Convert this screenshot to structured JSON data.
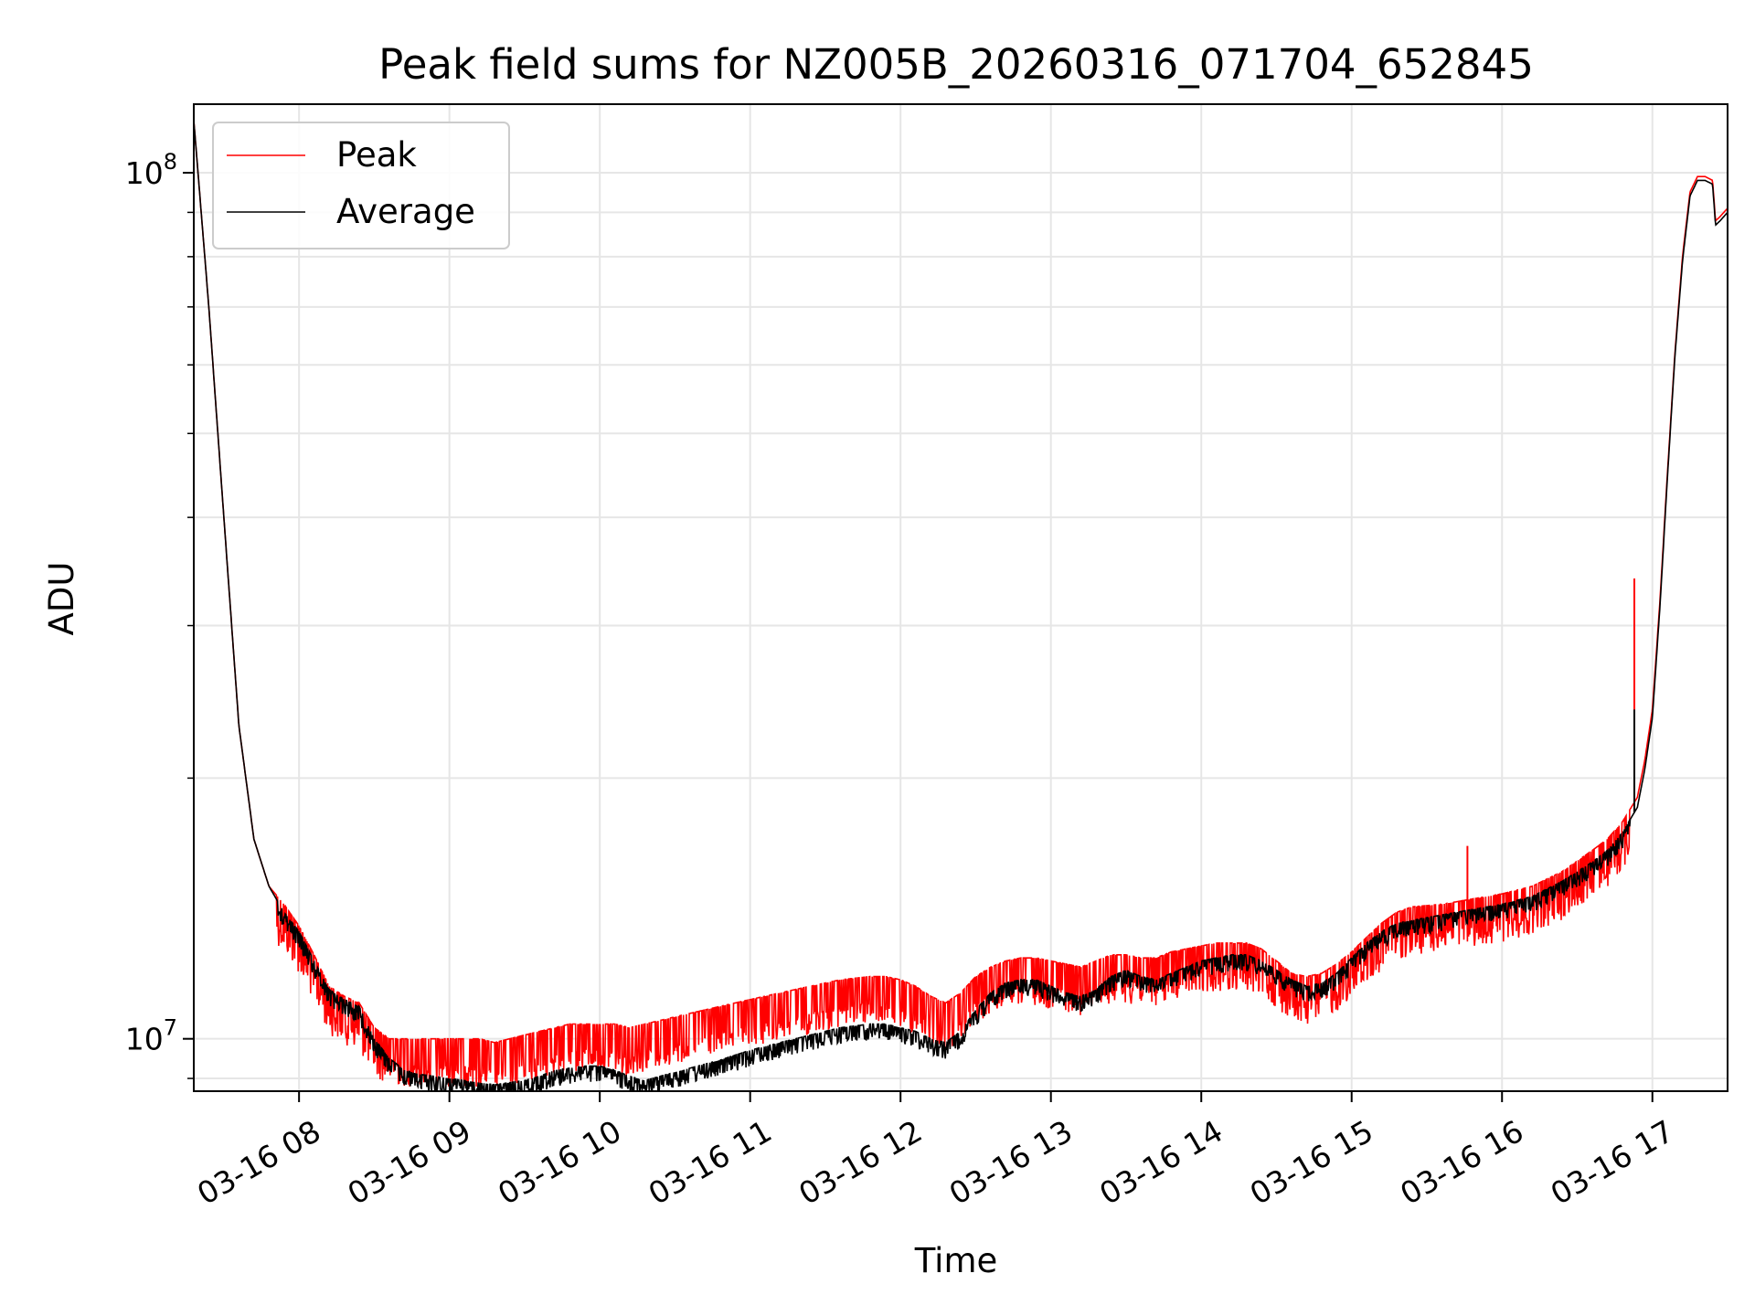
{
  "chart_data": {
    "type": "line",
    "title": "Peak field sums for NZ005B_20260316_071704_652845",
    "xlabel": "Time",
    "ylabel": "ADU",
    "yscale": "log",
    "xlim_hours": [
      7.3,
      17.5
    ],
    "ylim": [
      8700000,
      120000000
    ],
    "grid": true,
    "legend_position": "upper-left",
    "x_tick_labels": [
      "03-16 08",
      "03-16 09",
      "03-16 10",
      "03-16 11",
      "03-16 12",
      "03-16 13",
      "03-16 14",
      "03-16 15",
      "03-16 16",
      "03-16 17"
    ],
    "x_tick_hours": [
      8,
      9,
      10,
      11,
      12,
      13,
      14,
      15,
      16,
      17
    ],
    "y_tick_labels": [
      {
        "base": "10",
        "exp": "7",
        "value": 10000000
      },
      {
        "base": "10",
        "exp": "8",
        "value": 100000000
      }
    ],
    "x_hours": [
      7.3,
      7.4,
      7.5,
      7.6,
      7.7,
      7.8,
      7.9,
      8.0,
      8.1,
      8.2,
      8.3,
      8.4,
      8.5,
      8.6,
      8.7,
      8.8,
      9.0,
      9.2,
      9.3,
      9.4,
      9.5,
      9.6,
      9.7,
      9.8,
      9.9,
      10.0,
      10.1,
      10.2,
      10.3,
      10.4,
      10.5,
      10.6,
      10.8,
      11.0,
      11.2,
      11.4,
      11.6,
      11.8,
      11.9,
      12.0,
      12.1,
      12.2,
      12.3,
      12.4,
      12.5,
      12.6,
      12.7,
      12.8,
      12.9,
      13.0,
      13.1,
      13.2,
      13.3,
      13.4,
      13.5,
      13.6,
      13.7,
      13.8,
      13.9,
      14.0,
      14.1,
      14.2,
      14.3,
      14.4,
      14.5,
      14.6,
      14.7,
      14.8,
      14.9,
      15.0,
      15.1,
      15.2,
      15.3,
      15.4,
      15.6,
      15.8,
      16.0,
      16.2,
      16.4,
      16.6,
      16.7,
      16.8,
      16.9,
      16.95,
      17.0,
      17.05,
      17.1,
      17.15,
      17.2,
      17.25,
      17.3,
      17.35,
      17.4,
      17.42,
      17.45,
      17.5
    ],
    "series": [
      {
        "name": "Peak",
        "color": "#ff0000",
        "noise": 0.12,
        "values": [
          115000000,
          70000000,
          40000000,
          23000000,
          17000000,
          15000000,
          14300000,
          13500000,
          12500000,
          11500000,
          11200000,
          11000000,
          10300000,
          10000000,
          10000000,
          10000000,
          10000000,
          10000000,
          9900000,
          10000000,
          10100000,
          10200000,
          10300000,
          10400000,
          10400000,
          10400000,
          10400000,
          10300000,
          10400000,
          10500000,
          10600000,
          10700000,
          10900000,
          11100000,
          11300000,
          11500000,
          11700000,
          11800000,
          11800000,
          11700000,
          11500000,
          11200000,
          11000000,
          11300000,
          11800000,
          12100000,
          12300000,
          12400000,
          12400000,
          12300000,
          12200000,
          12100000,
          12300000,
          12500000,
          12500000,
          12400000,
          12400000,
          12600000,
          12700000,
          12800000,
          12900000,
          12900000,
          12900000,
          12700000,
          12300000,
          11900000,
          11800000,
          11900000,
          12200000,
          12600000,
          13100000,
          13600000,
          14000000,
          14200000,
          14300000,
          14500000,
          14700000,
          15000000,
          15600000,
          16500000,
          17000000,
          17800000,
          19000000,
          21000000,
          24000000,
          32000000,
          45000000,
          62000000,
          80000000,
          95000000,
          99000000,
          99000000,
          98000000,
          88000000,
          89000000,
          91000000
        ]
      },
      {
        "name": "Average",
        "color": "#000000",
        "noise": 0.06,
        "values": [
          115000000,
          70000000,
          40000000,
          23000000,
          17000000,
          15000000,
          14000000,
          13300000,
          12300000,
          11400000,
          11100000,
          10900000,
          10000000,
          9500000,
          9200000,
          9100000,
          9000000,
          8900000,
          8850000,
          8900000,
          8950000,
          9050000,
          9200000,
          9250000,
          9300000,
          9300000,
          9200000,
          9050000,
          8950000,
          9050000,
          9150000,
          9250000,
          9450000,
          9700000,
          9900000,
          10100000,
          10300000,
          10400000,
          10400000,
          10300000,
          10200000,
          10000000,
          9900000,
          10200000,
          10800000,
          11300000,
          11600000,
          11700000,
          11700000,
          11500000,
          11300000,
          11200000,
          11400000,
          11800000,
          12000000,
          11800000,
          11700000,
          11900000,
          12100000,
          12300000,
          12400000,
          12500000,
          12500000,
          12300000,
          12000000,
          11700000,
          11500000,
          11600000,
          11900000,
          12400000,
          12900000,
          13300000,
          13600000,
          13700000,
          13900000,
          14100000,
          14300000,
          14600000,
          15200000,
          16000000,
          16500000,
          17300000,
          18500000,
          20500000,
          23500000,
          31500000,
          44500000,
          61500000,
          79000000,
          94000000,
          98000000,
          98000000,
          97000000,
          87000000,
          88000000,
          90000000
        ]
      }
    ],
    "spikes": [
      {
        "series": "Peak",
        "x_hour": 15.77,
        "value": 16700000
      },
      {
        "series": "Peak",
        "x_hour": 16.88,
        "value": 34000000
      },
      {
        "series": "Average",
        "x_hour": 16.88,
        "value": 24000000
      }
    ],
    "legend": [
      {
        "label": "Peak",
        "color": "#ff0000"
      },
      {
        "label": "Average",
        "color": "#000000"
      }
    ]
  }
}
